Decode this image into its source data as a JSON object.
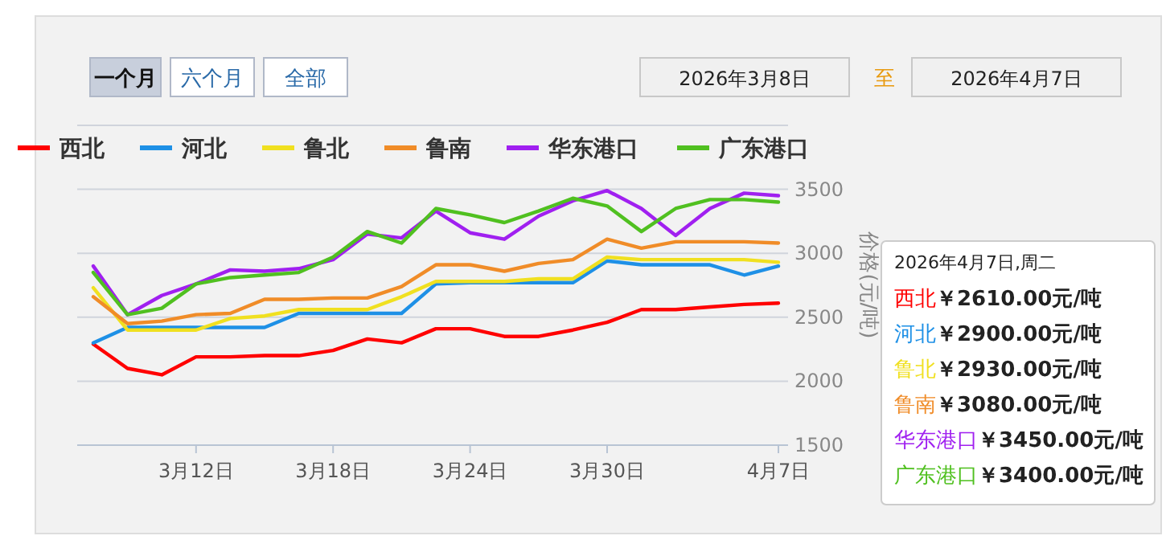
{
  "chart_data": {
    "type": "line",
    "ylabel": "价格(元/吨)",
    "categories": [
      null,
      null,
      null,
      "3月12日",
      null,
      null,
      null,
      "3月18日",
      null,
      null,
      null,
      "3月24日",
      null,
      null,
      null,
      "3月30日",
      null,
      null,
      null,
      null,
      "4月7日"
    ],
    "series": [
      {
        "name": "西北",
        "color": "#ff0000",
        "values": [
          2290,
          2100,
          2050,
          2190,
          2190,
          2200,
          2200,
          2240,
          2330,
          2300,
          2410,
          2410,
          2350,
          2350,
          2400,
          2460,
          2560,
          2560,
          2580,
          2600,
          2610
        ]
      },
      {
        "name": "河北",
        "color": "#1e90e6",
        "values": [
          2300,
          2420,
          2420,
          2420,
          2420,
          2420,
          2530,
          2530,
          2530,
          2530,
          2760,
          2770,
          2770,
          2770,
          2770,
          2940,
          2910,
          2910,
          2910,
          2830,
          2900
        ]
      },
      {
        "name": "鲁北",
        "color": "#f0e020",
        "values": [
          2730,
          2400,
          2400,
          2400,
          2490,
          2510,
          2560,
          2560,
          2560,
          2660,
          2780,
          2780,
          2780,
          2800,
          2800,
          2970,
          2950,
          2950,
          2950,
          2950,
          2930
        ]
      },
      {
        "name": "鲁南",
        "color": "#f08c28",
        "values": [
          2660,
          2450,
          2470,
          2520,
          2530,
          2640,
          2640,
          2650,
          2650,
          2740,
          2910,
          2910,
          2860,
          2920,
          2950,
          3110,
          3040,
          3090,
          3090,
          3090,
          3080
        ]
      },
      {
        "name": "华东港口",
        "color": "#a020f0",
        "values": [
          2900,
          2520,
          2670,
          2760,
          2870,
          2860,
          2880,
          2950,
          3150,
          3120,
          3330,
          3160,
          3110,
          3290,
          3410,
          3490,
          3350,
          3140,
          3350,
          3470,
          3450
        ]
      },
      {
        "name": "广东港口",
        "color": "#50c020",
        "values": [
          2850,
          2520,
          2570,
          2760,
          2810,
          2830,
          2850,
          2970,
          3170,
          3080,
          3350,
          3300,
          3240,
          3330,
          3430,
          3370,
          3170,
          3350,
          3420,
          3420,
          3400
        ]
      }
    ],
    "ylim": [
      1500,
      4000
    ],
    "yticks": [
      1500,
      2000,
      2500,
      3000,
      3500
    ],
    "grid": "y",
    "legend": "top",
    "marker": "none",
    "line_style": "solid",
    "annotations": [
      "一个月",
      "六个月",
      "全部",
      "2026年3月8日",
      "至",
      "2026年4月7日",
      "2026年4月7日,周二",
      "西北￥2610.00元/吨",
      "河北￥2900.00元/吨",
      "鲁北￥2930.00元/吨",
      "鲁南￥3080.00元/吨",
      "华东港口￥3450.00元/吨",
      "广东港口￥3400.00元/吨"
    ]
  }
}
